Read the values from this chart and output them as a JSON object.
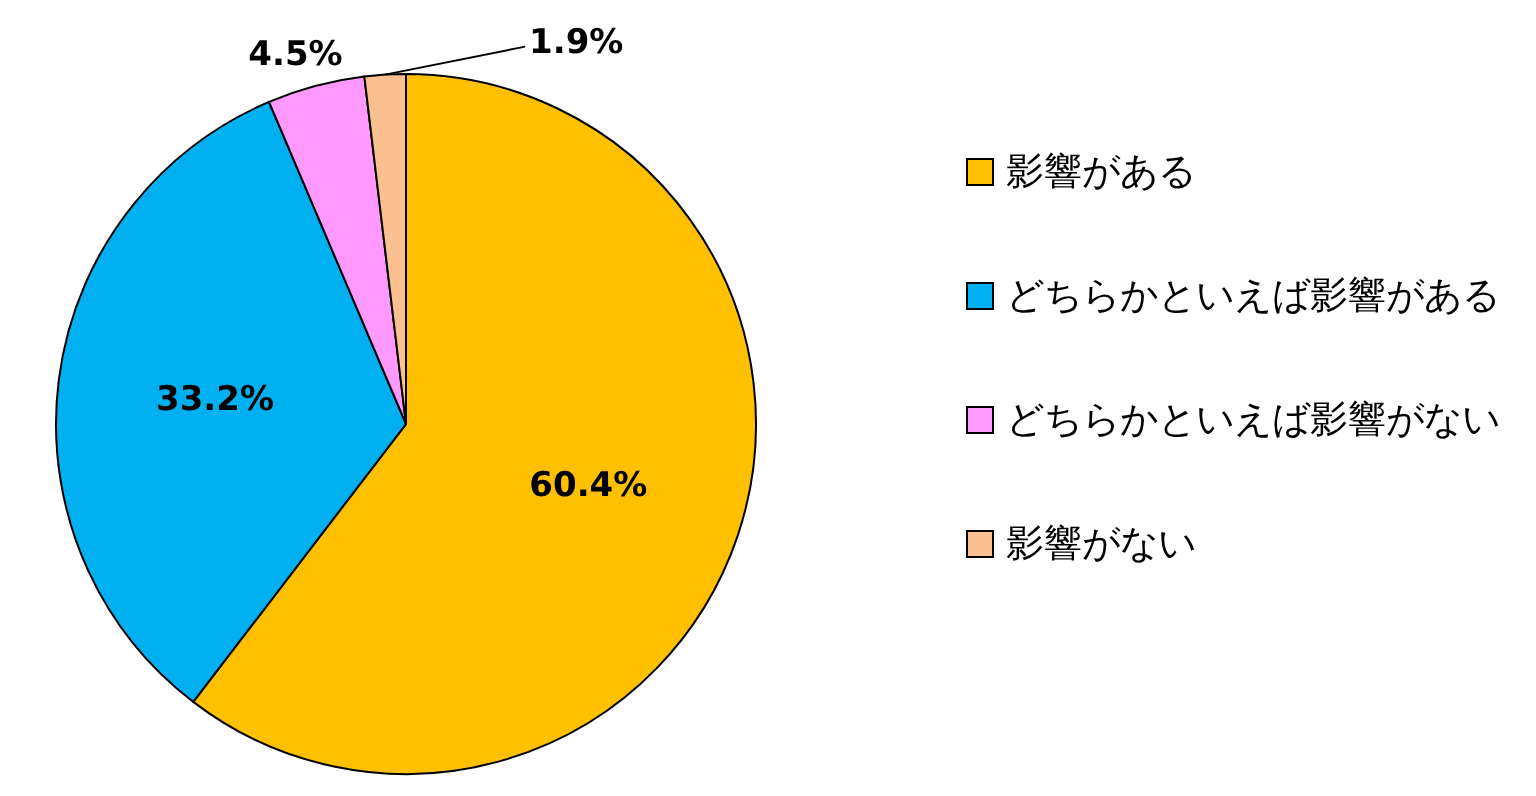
{
  "chart_data": {
    "type": "pie",
    "categories": [
      "影響がある",
      "どちらかといえば影響がある",
      "どちらかといえば影響がない",
      "影響がない"
    ],
    "values": [
      60.4,
      33.2,
      4.5,
      1.9
    ],
    "colors": [
      "#ffc000",
      "#00b0f0",
      "#ff99ff",
      "#fac090"
    ],
    "value_labels": [
      "60.4%",
      "33.2%",
      "4.5%",
      "1.9%"
    ],
    "legend": "right"
  }
}
